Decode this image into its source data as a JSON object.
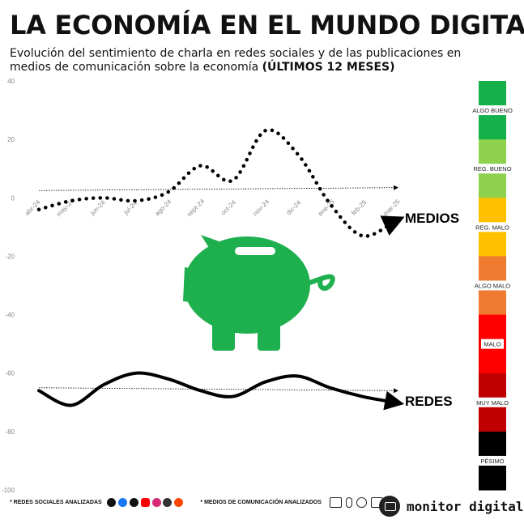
{
  "title": "LA ECONOMÍA EN EL MUNDO DIGITAL",
  "subtitle": "Evolución del sentimiento de charla en redes sociales y de las publicaciones en medios de comunicación sobre la economía",
  "subtitle_bold": "(ÚLTIMOS 12 MESES)",
  "chart_data": {
    "type": "line",
    "x": [
      "abr-24",
      "may-24",
      "jun-24",
      "jul-24",
      "ago-24",
      "sept-24",
      "oct-24",
      "nov-24",
      "dic-24",
      "ene-25",
      "feb-25",
      "mar-25"
    ],
    "ylim": [
      -100,
      40
    ],
    "yticks": [
      40,
      20,
      0,
      -20,
      -40,
      -60,
      -80,
      -100
    ],
    "grid": false,
    "series": [
      {
        "name": "MEDIOS",
        "style": "dotted",
        "color": "#000000",
        "values": [
          -4,
          -1,
          0,
          -1,
          2,
          11,
          6,
          23,
          15,
          -2,
          -13,
          -8
        ],
        "trend": [
          2.5,
          3.5
        ]
      },
      {
        "name": "REDES",
        "style": "solid",
        "color": "#000000",
        "values": [
          -66,
          -71,
          -64,
          -60,
          -62,
          -66,
          -68,
          -63,
          -61,
          -65,
          -68,
          -70
        ],
        "trend": [
          -65,
          -66
        ]
      }
    ]
  },
  "scale": [
    {
      "label": "ALGO BUENO",
      "color": "#16b04b"
    },
    {
      "label": "REG. BUENO",
      "color": "#8dd14d"
    },
    {
      "label": "REG. MALO",
      "color": "#ffc000"
    },
    {
      "label": "ALGO MALO",
      "color": "#ee7b30"
    },
    {
      "label": "MALO",
      "color": "#ff0000"
    },
    {
      "label": "MUY MALO",
      "color": "#c00000"
    },
    {
      "label": "PÉSIMO",
      "color": "#000000"
    }
  ],
  "icon": "piggy-bank-icon",
  "icon_color": "#1eb04e",
  "footer": {
    "social_label": "* REDES SOCIALES ANALIZADAS",
    "media_label": "* MEDIOS DE COMUNICACIÓN ANALIZADOS",
    "social_icons": [
      "x-icon",
      "facebook-icon",
      "tiktok-icon",
      "youtube-icon",
      "instagram-icon",
      "threads-icon",
      "reddit-icon"
    ],
    "media_icons": [
      "newspaper-icon",
      "microphone-icon",
      "radio-icon",
      "tv-icon"
    ]
  },
  "brand": "monitor digital"
}
